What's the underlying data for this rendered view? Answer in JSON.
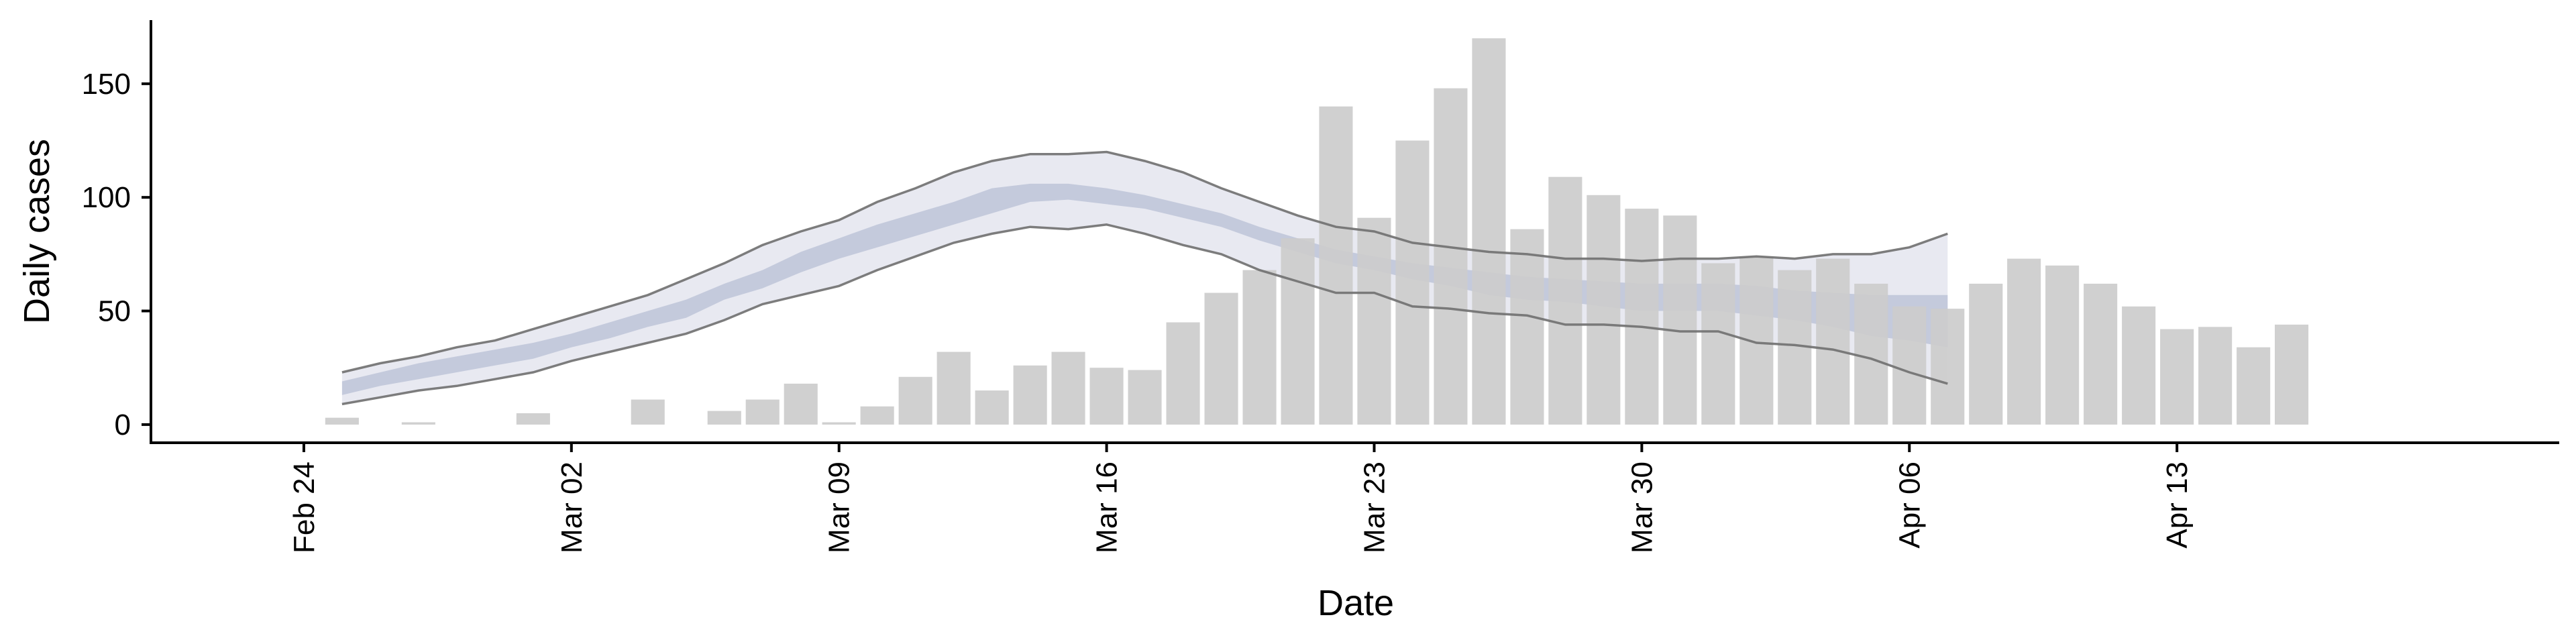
{
  "chart_data": {
    "type": "bar",
    "title": "",
    "xlabel": "Date",
    "ylabel": "Daily cases",
    "ylim": [
      -8,
      178
    ],
    "yticks": [
      0,
      50,
      100,
      150
    ],
    "x_start_date": "2020-02-20",
    "x_end_date": "2020-04-23",
    "xtick_labels": [
      "Feb 24",
      "Mar 02",
      "Mar 09",
      "Mar 16",
      "Mar 23",
      "Mar 30",
      "Apr 06",
      "Apr 13"
    ],
    "xtick_dates": [
      "2020-02-24",
      "2020-03-02",
      "2020-03-09",
      "2020-03-16",
      "2020-03-23",
      "2020-03-30",
      "2020-04-06",
      "2020-04-13"
    ],
    "grid": false,
    "legend": "none",
    "colors": {
      "bars": "#cccccc",
      "band_outer": "#e8e9f1",
      "band_inner": "#c4cadc",
      "bound_lines": "#6f6f6f",
      "axis": "#000000"
    },
    "series": [
      {
        "kind": "bar",
        "dates": [
          "2020-02-21",
          "2020-02-22",
          "2020-02-23",
          "2020-02-24",
          "2020-02-25",
          "2020-02-26",
          "2020-02-27",
          "2020-02-28",
          "2020-02-29",
          "2020-03-01",
          "2020-03-02",
          "2020-03-03",
          "2020-03-04",
          "2020-03-05",
          "2020-03-06",
          "2020-03-07",
          "2020-03-08",
          "2020-03-09",
          "2020-03-10",
          "2020-03-11",
          "2020-03-12",
          "2020-03-13",
          "2020-03-14",
          "2020-03-15",
          "2020-03-16",
          "2020-03-17",
          "2020-03-18",
          "2020-03-19",
          "2020-03-20",
          "2020-03-21",
          "2020-03-22",
          "2020-03-23",
          "2020-03-24",
          "2020-03-25",
          "2020-03-26",
          "2020-03-27",
          "2020-03-28",
          "2020-03-29",
          "2020-03-30",
          "2020-03-31",
          "2020-04-01",
          "2020-04-02",
          "2020-04-03",
          "2020-04-04",
          "2020-04-05",
          "2020-04-06",
          "2020-04-07",
          "2020-04-08",
          "2020-04-09",
          "2020-04-10",
          "2020-04-11",
          "2020-04-12",
          "2020-04-13",
          "2020-04-14",
          "2020-04-15",
          "2020-04-16",
          "2020-04-17"
        ],
        "values": [
          0,
          0,
          0,
          0,
          3,
          0,
          1,
          0,
          0,
          5,
          0,
          0,
          11,
          0,
          6,
          11,
          18,
          1,
          8,
          21,
          32,
          15,
          26,
          32,
          25,
          24,
          45,
          58,
          68,
          82,
          140,
          91,
          125,
          148,
          170,
          86,
          109,
          101,
          95,
          92,
          71,
          74,
          68,
          73,
          62,
          52,
          51,
          62,
          73,
          70,
          62,
          52,
          42,
          43,
          34,
          44,
          0
        ]
      },
      {
        "kind": "band",
        "dates": [
          "2020-02-25",
          "2020-02-26",
          "2020-02-27",
          "2020-02-28",
          "2020-02-29",
          "2020-03-01",
          "2020-03-02",
          "2020-03-03",
          "2020-03-04",
          "2020-03-05",
          "2020-03-06",
          "2020-03-07",
          "2020-03-08",
          "2020-03-09",
          "2020-03-10",
          "2020-03-11",
          "2020-03-12",
          "2020-03-13",
          "2020-03-14",
          "2020-03-15",
          "2020-03-16",
          "2020-03-17",
          "2020-03-18",
          "2020-03-19",
          "2020-03-20",
          "2020-03-21",
          "2020-03-22",
          "2020-03-23",
          "2020-03-24",
          "2020-03-25",
          "2020-03-26",
          "2020-03-27",
          "2020-03-28",
          "2020-03-29",
          "2020-03-30",
          "2020-03-31",
          "2020-04-01",
          "2020-04-02",
          "2020-04-03",
          "2020-04-04",
          "2020-04-05",
          "2020-04-06",
          "2020-04-07"
        ],
        "outer_low": [
          9,
          12,
          15,
          17,
          20,
          23,
          28,
          32,
          36,
          40,
          46,
          53,
          57,
          61,
          68,
          74,
          80,
          84,
          87,
          86,
          88,
          84,
          79,
          75,
          68,
          63,
          58,
          58,
          52,
          51,
          49,
          48,
          44,
          44,
          43,
          41,
          41,
          36,
          35,
          33,
          29,
          23,
          18
        ],
        "inner_low": [
          13,
          17,
          20,
          23,
          26,
          29,
          34,
          38,
          43,
          47,
          55,
          60,
          67,
          73,
          78,
          83,
          88,
          93,
          98,
          99,
          97,
          95,
          91,
          87,
          81,
          76,
          71,
          68,
          64,
          61,
          57,
          55,
          54,
          52,
          50,
          50,
          50,
          48,
          46,
          43,
          39,
          37,
          34
        ],
        "inner_high": [
          19,
          23,
          27,
          30,
          33,
          36,
          40,
          45,
          50,
          55,
          62,
          68,
          76,
          82,
          88,
          93,
          98,
          104,
          106,
          106,
          104,
          101,
          97,
          93,
          87,
          82,
          77,
          74,
          71,
          69,
          67,
          65,
          64,
          63,
          62,
          62,
          62,
          61,
          59,
          58,
          57,
          57,
          57
        ],
        "outer_high": [
          23,
          27,
          30,
          34,
          37,
          42,
          47,
          52,
          57,
          64,
          71,
          79,
          85,
          90,
          98,
          104,
          111,
          116,
          119,
          119,
          120,
          116,
          111,
          104,
          98,
          92,
          87,
          85,
          80,
          78,
          76,
          75,
          73,
          73,
          72,
          73,
          73,
          74,
          73,
          75,
          75,
          78,
          84
        ]
      }
    ]
  }
}
